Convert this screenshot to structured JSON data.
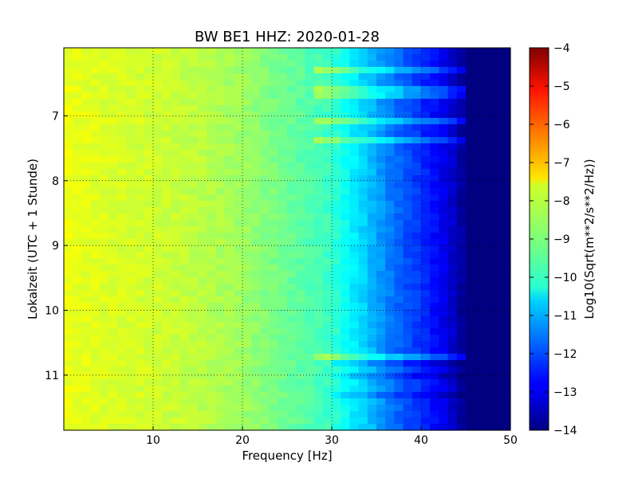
{
  "chart_data": {
    "type": "heatmap",
    "title": "BW BE1 HHZ: 2020-01-28",
    "xlabel": "Frequency [Hz]",
    "ylabel": "Lokalzeit (UTC + 1 Stunde)",
    "xlim": [
      0,
      50
    ],
    "ylim": [
      5.95,
      11.85
    ],
    "y_inverted": true,
    "x_ticks": [
      10,
      20,
      30,
      40,
      50
    ],
    "y_ticks": [
      7,
      8,
      9,
      10,
      11
    ],
    "grid": true,
    "colormap": "jet",
    "colorbar": {
      "label": "Log10(Sqrt(m**2/s**2/Hz))",
      "range": [
        -14,
        -4
      ],
      "ticks": [
        -4,
        -5,
        -6,
        -7,
        -8,
        -9,
        -10,
        -11,
        -12,
        -13,
        -14
      ]
    },
    "profile": {
      "frequency_hz": [
        0,
        2,
        5,
        10,
        15,
        20,
        25,
        30,
        32,
        34,
        36,
        38,
        40,
        42,
        44,
        45,
        50
      ],
      "log_amplitude": [
        -7.9,
        -8.0,
        -8.1,
        -8.2,
        -8.4,
        -8.7,
        -9.2,
        -9.7,
        -10.3,
        -10.8,
        -11.4,
        -11.9,
        -12.3,
        -12.8,
        -13.4,
        -14.0,
        -14.0
      ]
    },
    "bright_bands_local_time": [
      6.28,
      6.63,
      7.05,
      7.35,
      10.72
    ],
    "quiet_bands_local_time": [
      10.78,
      11.0,
      11.3
    ]
  }
}
